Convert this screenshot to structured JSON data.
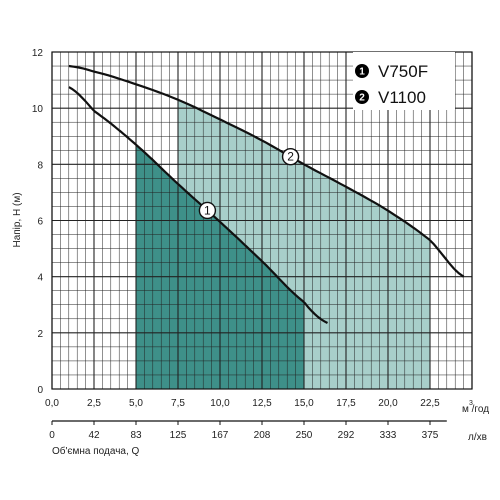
{
  "chart_data": {
    "type": "line",
    "ylabel": "Напір, H (м)",
    "xlabel": "Об'ємна подача, Q",
    "x_unit_primary_superscript": "3",
    "x_unit_primary": "м /год",
    "x_unit_secondary": "л/хв",
    "xlim": [
      0,
      25
    ],
    "ylim": [
      0,
      12
    ],
    "x_ticks_primary": [
      "0,0",
      "2,5",
      "5,0",
      "7,5",
      "10,0",
      "12,5",
      "15,0",
      "17,5",
      "20,0",
      "22,5"
    ],
    "x_ticks_primary_values": [
      0,
      2.5,
      5,
      7.5,
      10,
      12.5,
      15,
      17.5,
      20,
      22.5
    ],
    "x_ticks_secondary": [
      "0",
      "42",
      "83",
      "125",
      "167",
      "208",
      "250",
      "292",
      "333",
      "375"
    ],
    "y_ticks": [
      "0",
      "2",
      "4",
      "6",
      "8",
      "10",
      "12"
    ],
    "y_tick_values": [
      0,
      2,
      4,
      6,
      8,
      10,
      12
    ],
    "grid": true,
    "legend_position": "top-right",
    "legend": [
      {
        "badge": "1",
        "label": "V750F"
      },
      {
        "badge": "2",
        "label": "V1100"
      }
    ],
    "series": [
      {
        "name": "V750F",
        "tag": "1",
        "operating_range": [
          5.0,
          15.0
        ],
        "x": [
          1.0,
          2.5,
          5.0,
          7.5,
          10.0,
          12.5,
          15.0,
          16.4
        ],
        "y": [
          10.75,
          9.9,
          8.7,
          7.3,
          5.95,
          4.55,
          3.1,
          2.35
        ]
      },
      {
        "name": "V1100",
        "tag": "2",
        "operating_range": [
          7.5,
          22.5
        ],
        "x": [
          1.0,
          2.5,
          5.0,
          7.5,
          10.0,
          12.5,
          15.0,
          17.5,
          20.0,
          22.5,
          24.5
        ],
        "y": [
          11.5,
          11.3,
          10.85,
          10.3,
          9.6,
          8.85,
          8.0,
          7.2,
          6.35,
          5.3,
          4.0
        ]
      }
    ],
    "colors": {
      "v750f_fill": "#3e9089",
      "v1100_fill": "#a8cfca",
      "grid": "#222222",
      "curve": "#111111",
      "badge": "#000000"
    }
  }
}
